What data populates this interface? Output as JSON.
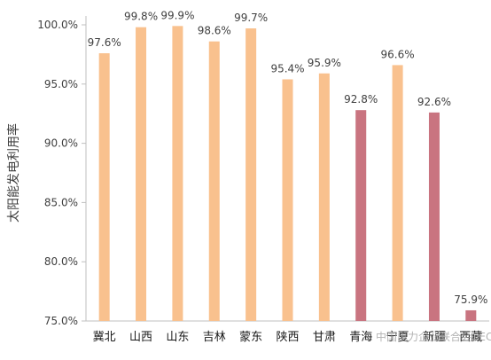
{
  "chart_data": {
    "type": "bar",
    "ylabel": "太阳能发电利用率",
    "categories": [
      "冀北",
      "山西",
      "山东",
      "吉林",
      "蒙东",
      "陕西",
      "甘肃",
      "青海",
      "宁夏",
      "新疆",
      "西藏"
    ],
    "values": [
      97.6,
      99.8,
      99.9,
      98.6,
      99.7,
      95.4,
      95.9,
      92.8,
      96.6,
      92.6,
      75.9
    ],
    "value_labels": [
      "97.6%",
      "99.8%",
      "99.9%",
      "98.6%",
      "99.7%",
      "95.4%",
      "95.9%",
      "92.8%",
      "96.6%",
      "92.6%",
      "75.9%"
    ],
    "bar_colors": [
      "#F9C18E",
      "#F9C18E",
      "#F9C18E",
      "#F9C18E",
      "#F9C18E",
      "#F9C18E",
      "#F9C18E",
      "#C97480",
      "#F9C18E",
      "#C97480",
      "#C97480"
    ],
    "ylim": [
      75,
      100
    ],
    "yticks": [
      75,
      80,
      85,
      90,
      95,
      100
    ],
    "ytick_labels": [
      "75.0%",
      "80.0%",
      "85.0%",
      "90.0%",
      "95.0%",
      "100.0%"
    ],
    "grid": false,
    "legend": "none"
  },
  "watermark": "中国电力企业联合会CEC"
}
